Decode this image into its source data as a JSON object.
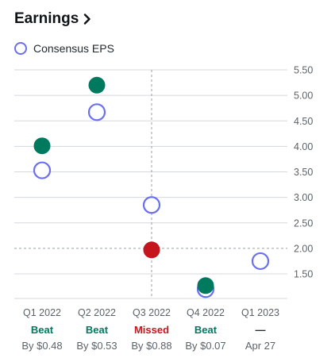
{
  "header": {
    "title": "Earnings"
  },
  "legend": {
    "label": "Consensus EPS"
  },
  "colors": {
    "beat": "#007a5e",
    "missed": "#c5161d",
    "consensus": "#6a6ff0",
    "neutral": "#5b636a",
    "grid": "#d5d8dc"
  },
  "chart_data": {
    "type": "scatter",
    "ylim": [
      1.0,
      5.5
    ],
    "yticks": [
      "5.50",
      "5.00",
      "4.50",
      "4.00",
      "3.50",
      "3.00",
      "2.50",
      "2.00",
      "1.50"
    ],
    "ytick_values": [
      5.5,
      5.0,
      4.5,
      4.0,
      3.5,
      3.0,
      2.5,
      2.0,
      1.5
    ],
    "categories": [
      "Q1 2022",
      "Q2 2022",
      "Q3 2022",
      "Q4 2022",
      "Q1 2023"
    ],
    "series": [
      {
        "name": "Consensus EPS",
        "values": [
          3.53,
          4.67,
          2.85,
          1.2,
          1.75
        ]
      },
      {
        "values": [
          4.01,
          5.2,
          1.97,
          1.27,
          null
        ]
      }
    ],
    "results": [
      {
        "status": "Beat",
        "kind": "beat",
        "detail": "By $0.48"
      },
      {
        "status": "Beat",
        "kind": "beat",
        "detail": "By $0.53"
      },
      {
        "status": "Missed",
        "kind": "missed",
        "detail": "By $0.88"
      },
      {
        "status": "Beat",
        "kind": "beat",
        "detail": "By $0.07"
      },
      {
        "status": "—",
        "kind": "upcoming",
        "detail": "Apr 27"
      }
    ],
    "highlight_index": 2,
    "grid": true
  }
}
